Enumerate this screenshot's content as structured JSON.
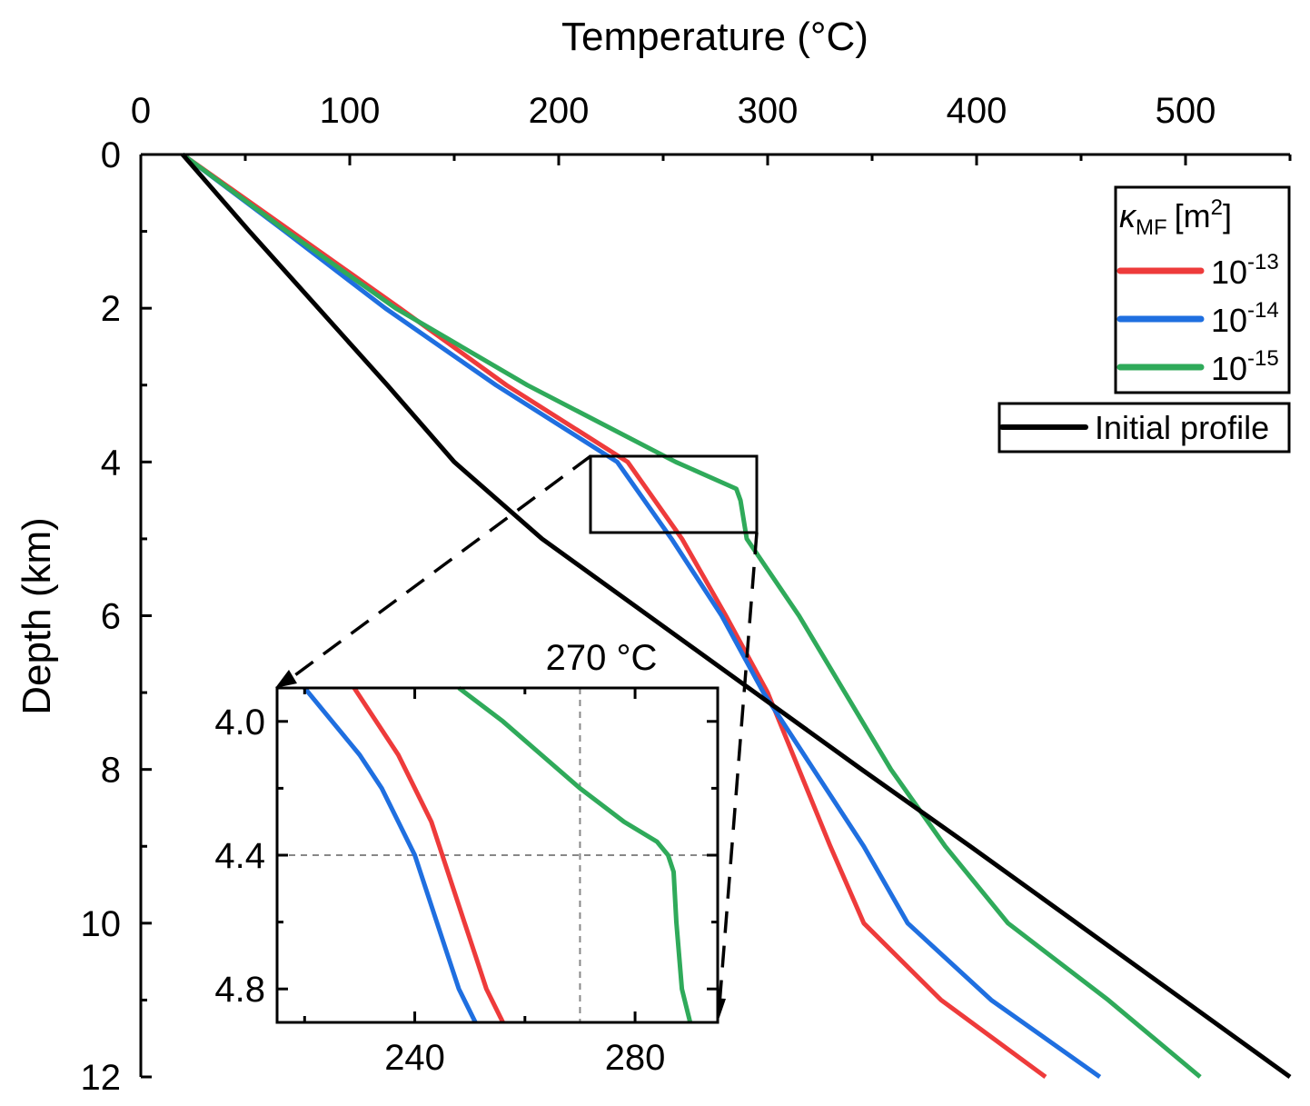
{
  "chart_data": {
    "type": "line",
    "xlabel": "Temperature (°C)",
    "ylabel": "Depth (km)",
    "xlim": [
      0,
      550
    ],
    "ylim": [
      12,
      0
    ],
    "xticks": [
      "0",
      "100",
      "200",
      "300",
      "400",
      "500"
    ],
    "yticks": [
      "0",
      "2",
      "4",
      "6",
      "8",
      "10",
      "12"
    ],
    "grid": false,
    "legend_placement": "top-right",
    "legend_title": "κMF [m²]",
    "legend_title_parts": {
      "symbol": "κ",
      "sub": "MF",
      "unit": "[m",
      "sup": "2",
      "close": "]"
    },
    "series": [
      {
        "name": "10-13",
        "base": "10",
        "exp": "-13",
        "color": "#ee3b3b",
        "points": [
          [
            20,
            0
          ],
          [
            72,
            1
          ],
          [
            124,
            2
          ],
          [
            175,
            3
          ],
          [
            233,
            4
          ],
          [
            259,
            5
          ],
          [
            280,
            6
          ],
          [
            300,
            7
          ],
          [
            315,
            8
          ],
          [
            330,
            9
          ],
          [
            346,
            10
          ],
          [
            383,
            11
          ],
          [
            433,
            12
          ]
        ]
      },
      {
        "name": "10-14",
        "base": "10",
        "exp": "-14",
        "color": "#1f6fe0",
        "points": [
          [
            20,
            0
          ],
          [
            69,
            1
          ],
          [
            117,
            2
          ],
          [
            170,
            3
          ],
          [
            228,
            4
          ],
          [
            254,
            5
          ],
          [
            278,
            6
          ],
          [
            298,
            7
          ],
          [
            322,
            8
          ],
          [
            346,
            9
          ],
          [
            367,
            10
          ],
          [
            407,
            11
          ],
          [
            459,
            12
          ]
        ]
      },
      {
        "name": "10-15",
        "base": "10",
        "exp": "-15",
        "color": "#2faa5a",
        "points": [
          [
            20,
            0
          ],
          [
            70,
            1
          ],
          [
            122,
            2
          ],
          [
            185,
            3
          ],
          [
            256,
            4
          ],
          [
            285,
            4.35
          ],
          [
            287,
            4.5
          ],
          [
            290,
            5
          ],
          [
            315,
            6
          ],
          [
            337,
            7
          ],
          [
            359,
            8
          ],
          [
            385,
            9
          ],
          [
            415,
            10
          ],
          [
            463,
            11
          ],
          [
            507,
            12
          ]
        ]
      },
      {
        "name": "Initial profile",
        "color": "#000000",
        "points": [
          [
            20,
            0
          ],
          [
            52,
            1
          ],
          [
            85,
            2
          ],
          [
            118,
            3
          ],
          [
            150,
            4
          ],
          [
            192,
            5
          ],
          [
            243,
            6
          ],
          [
            294,
            7
          ],
          [
            345,
            8
          ],
          [
            397,
            9
          ],
          [
            448,
            10
          ],
          [
            499,
            11
          ],
          [
            550,
            12
          ]
        ]
      }
    ],
    "inset": {
      "xlim": [
        215,
        295
      ],
      "ylim": [
        4.9,
        3.9
      ],
      "xticks": [
        "240",
        "280"
      ],
      "yticks": [
        "4.0",
        "4.4",
        "4.8"
      ],
      "annotation": "270 °C",
      "reference_lines": {
        "x": 270,
        "y": 4.4
      },
      "series": [
        {
          "color": "#ee3b3b",
          "points": [
            [
              229,
              3.9
            ],
            [
              233,
              4.0
            ],
            [
              237,
              4.1
            ],
            [
              240,
              4.2
            ],
            [
              243,
              4.3
            ],
            [
              245,
              4.4
            ],
            [
              247,
              4.5
            ],
            [
              249,
              4.6
            ],
            [
              251,
              4.7
            ],
            [
              253,
              4.8
            ],
            [
              256,
              4.9
            ]
          ]
        },
        {
          "color": "#1f6fe0",
          "points": [
            [
              220,
              3.9
            ],
            [
              225,
              4.0
            ],
            [
              230,
              4.1
            ],
            [
              234,
              4.2
            ],
            [
              237,
              4.3
            ],
            [
              240,
              4.4
            ],
            [
              242,
              4.5
            ],
            [
              244,
              4.6
            ],
            [
              246,
              4.7
            ],
            [
              248,
              4.8
            ],
            [
              251,
              4.9
            ]
          ]
        },
        {
          "color": "#2faa5a",
          "points": [
            [
              248,
              3.9
            ],
            [
              256,
              4.0
            ],
            [
              263,
              4.1
            ],
            [
              270,
              4.2
            ],
            [
              278,
              4.3
            ],
            [
              284,
              4.36
            ],
            [
              286,
              4.4
            ],
            [
              287,
              4.45
            ],
            [
              287.5,
              4.6
            ],
            [
              288.5,
              4.8
            ],
            [
              290,
              4.9
            ]
          ]
        }
      ]
    }
  }
}
